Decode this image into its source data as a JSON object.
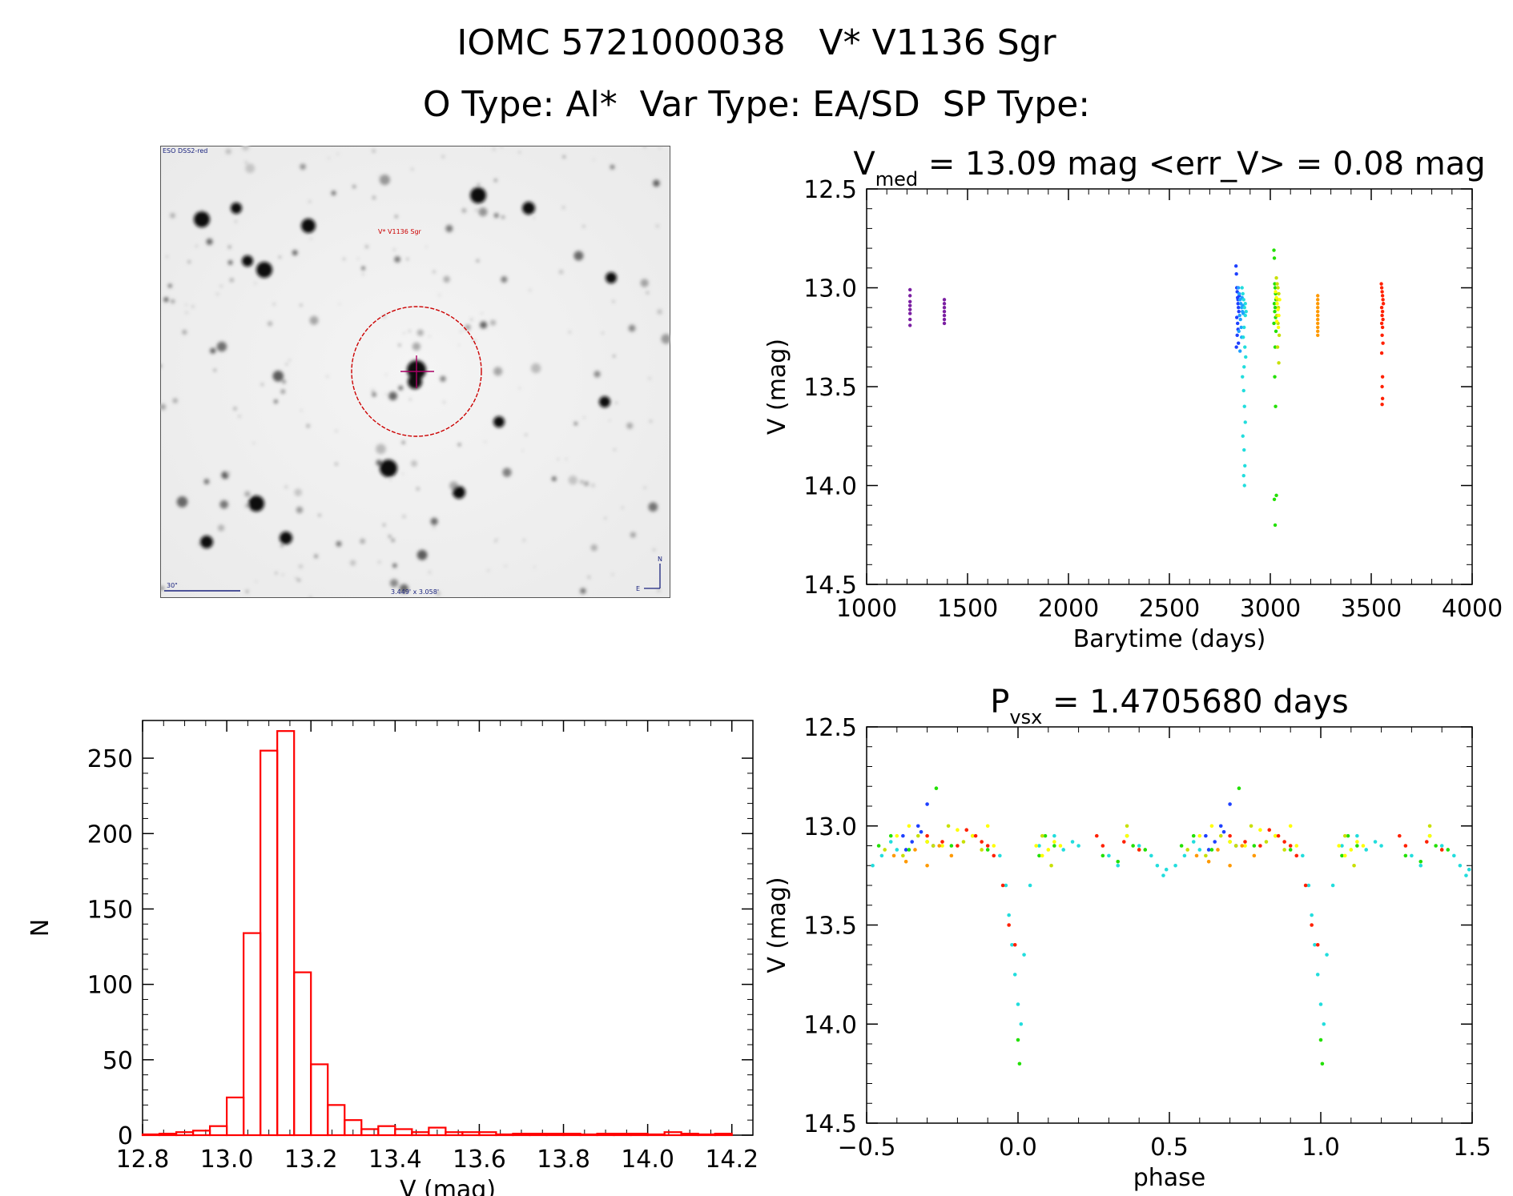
{
  "header": {
    "line1": "IOMC 5721000038   V* V1136 Sgr",
    "line2": "O Type: Al*  Var Type: EA/SD  SP Type:"
  },
  "finder": {
    "survey_label": "ESO DSS2-red",
    "target_label": "V* V1136 Sgr",
    "scale_label": "30\"",
    "fov_label": "3.449' x 3.058'",
    "north_label": "N",
    "east_label": "E"
  },
  "colors": {
    "hist": "#ff0000",
    "finder_circle": "#cc0000",
    "finder_text_blue": "#1a237e",
    "finder_text_red": "#cc0000",
    "season_palette": [
      "#7b1fa2",
      "#5e35b1",
      "#1e40ff",
      "#1fa0ff",
      "#22dddd",
      "#22e000",
      "#c8e000",
      "#ffff00",
      "#ff9900",
      "#ff2000"
    ]
  },
  "chart_data": [
    {
      "id": "lightcurve",
      "type": "scatter",
      "title": "V_med = 13.09 mag <err_V> = 0.08 mag",
      "title_main": "V",
      "title_sub": "med",
      "title_rest": " = 13.09 mag <err_V> = 0.08 mag",
      "xlabel": "Barytime (days)",
      "ylabel": "V (mag)",
      "xlim": [
        1000,
        4000
      ],
      "ylim": [
        14.5,
        12.5
      ],
      "xticks": [
        "1000",
        "1500",
        "2000",
        "2500",
        "3000",
        "3500",
        "4000"
      ],
      "yticks": [
        "12.5",
        "13.0",
        "13.5",
        "14.0",
        "14.5"
      ],
      "series": [
        {
          "color": "#7b1fa2",
          "x": [
            1215,
            1215,
            1215,
            1215,
            1215,
            1215,
            1215,
            1215,
            1385,
            1385,
            1385,
            1385,
            1385,
            1385,
            1385
          ],
          "y": [
            13.01,
            13.04,
            13.07,
            13.09,
            13.11,
            13.13,
            13.16,
            13.19,
            13.06,
            13.08,
            13.1,
            13.12,
            13.14,
            13.16,
            13.18
          ]
        },
        {
          "color": "#1e40ff",
          "x": [
            2830,
            2832,
            2834,
            2836,
            2838,
            2840,
            2842,
            2844,
            2834,
            2838,
            2840,
            2836,
            2842,
            2832,
            2846,
            2840
          ],
          "y": [
            12.89,
            12.93,
            13.0,
            13.02,
            13.05,
            13.08,
            13.1,
            13.12,
            13.15,
            13.18,
            13.21,
            13.24,
            13.28,
            13.3,
            13.04,
            13.06
          ]
        },
        {
          "color": "#1fa0ff",
          "x": [
            2842,
            2846,
            2850,
            2854,
            2858,
            2862,
            2848,
            2852,
            2856,
            2860,
            2864,
            2844,
            2858,
            2866,
            2850
          ],
          "y": [
            13.0,
            13.03,
            13.06,
            13.08,
            13.1,
            13.12,
            13.14,
            13.16,
            13.2,
            13.05,
            13.09,
            13.22,
            13.25,
            13.13,
            13.32
          ]
        },
        {
          "color": "#22dddd",
          "x": [
            2860,
            2864,
            2868,
            2872,
            2876,
            2870,
            2866,
            2874,
            2878,
            2862,
            2868,
            2872,
            2876,
            2864,
            2870,
            2874,
            2868,
            2872,
            2876,
            2880,
            2870
          ],
          "y": [
            13.0,
            13.03,
            13.06,
            13.1,
            13.14,
            13.2,
            13.25,
            13.3,
            13.35,
            13.45,
            13.52,
            13.6,
            13.68,
            13.75,
            13.82,
            13.9,
            13.95,
            14.0,
            13.08,
            13.12,
            13.4
          ]
        },
        {
          "color": "#22e000",
          "x": [
            3018,
            3020,
            3022,
            3024,
            3026,
            3028,
            3020,
            3024,
            3022,
            3026,
            3018,
            3028,
            3024,
            3022,
            3026,
            3030,
            3020,
            3024
          ],
          "y": [
            12.81,
            12.85,
            12.98,
            13.0,
            13.03,
            13.06,
            13.08,
            13.1,
            13.12,
            13.15,
            13.18,
            13.22,
            13.3,
            13.45,
            13.6,
            14.05,
            14.07,
            14.2
          ]
        },
        {
          "color": "#c8e000",
          "x": [
            3030,
            3034,
            3038,
            3042,
            3036,
            3040,
            3032,
            3038,
            3044,
            3036,
            3042
          ],
          "y": [
            12.95,
            12.98,
            13.0,
            13.03,
            13.06,
            13.1,
            13.14,
            13.18,
            13.24,
            13.3,
            13.38
          ]
        },
        {
          "color": "#ffff00",
          "x": [
            3026,
            3030,
            3034,
            3038,
            3042,
            3046,
            3032,
            3040
          ],
          "y": [
            13.02,
            13.05,
            13.08,
            13.11,
            13.14,
            13.06,
            13.17,
            13.2
          ]
        },
        {
          "color": "#ff9900",
          "x": [
            3235,
            3235,
            3235,
            3235,
            3235,
            3235,
            3235,
            3235,
            3235,
            3235,
            3235,
            3235
          ],
          "y": [
            13.04,
            13.06,
            13.08,
            13.1,
            13.12,
            13.14,
            13.16,
            13.18,
            13.2,
            13.22,
            13.14,
            13.24
          ]
        },
        {
          "color": "#ff2000",
          "x": [
            3550,
            3552,
            3554,
            3556,
            3558,
            3560,
            3552,
            3556,
            3554,
            3558,
            3552,
            3556,
            3554,
            3558,
            3552,
            3556,
            3554,
            3556,
            3554
          ],
          "y": [
            12.98,
            13.0,
            13.02,
            13.04,
            13.06,
            13.08,
            13.1,
            13.12,
            13.14,
            13.16,
            13.18,
            13.2,
            13.24,
            13.28,
            13.33,
            13.45,
            13.5,
            13.56,
            13.59
          ]
        }
      ]
    },
    {
      "id": "histogram",
      "type": "bar",
      "xlabel": "V (mag)",
      "ylabel": "N",
      "xlim": [
        12.8,
        14.25
      ],
      "ylim": [
        0,
        275
      ],
      "xticks": [
        "12.8",
        "13.0",
        "13.2",
        "13.4",
        "13.6",
        "13.8",
        "14.0",
        "14.2"
      ],
      "yticks": [
        "0",
        "50",
        "100",
        "150",
        "200",
        "250"
      ],
      "bin_width": 0.04,
      "bin_starts": [
        12.8,
        12.84,
        12.88,
        12.92,
        12.96,
        13.0,
        13.04,
        13.08,
        13.12,
        13.16,
        13.2,
        13.24,
        13.28,
        13.32,
        13.36,
        13.4,
        13.44,
        13.48,
        13.52,
        13.56,
        13.6,
        13.64,
        13.68,
        13.72,
        13.76,
        13.8,
        13.84,
        13.88,
        13.92,
        13.96,
        14.0,
        14.04,
        14.08,
        14.12,
        14.16
      ],
      "values": [
        0,
        1,
        2,
        3,
        6,
        25,
        134,
        255,
        268,
        108,
        47,
        20,
        10,
        4,
        6,
        4,
        2,
        5,
        2,
        2,
        2,
        0,
        1,
        1,
        1,
        1,
        0,
        1,
        1,
        1,
        0,
        2,
        1,
        0,
        1
      ]
    },
    {
      "id": "phased",
      "type": "scatter",
      "title": "P_vsx = 1.4705680 days",
      "title_main": "P",
      "title_sub": "vsx",
      "title_rest": " = 1.4705680 days",
      "xlabel": "phase",
      "ylabel": "V (mag)",
      "xlim": [
        -0.5,
        1.5
      ],
      "ylim": [
        14.5,
        12.5
      ],
      "xticks": [
        "−0.5",
        "0.0",
        "0.5",
        "1.0",
        "1.5"
      ],
      "yticks": [
        "12.5",
        "13.0",
        "13.5",
        "14.0",
        "14.5"
      ],
      "series": [
        {
          "color": "#1e40ff",
          "x": [
            -0.38,
            -0.35,
            -0.32,
            -0.3,
            -0.37,
            -0.33,
            -0.28
          ],
          "y": [
            13.05,
            13.08,
            13.03,
            12.89,
            13.12,
            13.0,
            13.1
          ]
        },
        {
          "color": "#22dddd",
          "x": [
            -0.48,
            -0.45,
            -0.42,
            -0.4,
            -0.06,
            -0.04,
            -0.03,
            -0.02,
            -0.01,
            0.0,
            0.01,
            0.02,
            0.04,
            0.07,
            0.12,
            0.15,
            0.18,
            0.2,
            0.3,
            0.33,
            0.4,
            0.44,
            0.46,
            0.48,
            0.49
          ],
          "y": [
            13.2,
            13.15,
            13.08,
            13.12,
            13.15,
            13.3,
            13.45,
            13.6,
            13.75,
            13.9,
            14.0,
            13.65,
            13.3,
            13.1,
            13.05,
            13.12,
            13.08,
            13.1,
            13.15,
            13.2,
            13.1,
            13.15,
            13.2,
            13.25,
            13.22
          ]
        },
        {
          "color": "#22e000",
          "x": [
            -0.46,
            -0.42,
            -0.36,
            -0.3,
            -0.27,
            -0.22,
            -0.15,
            -0.1,
            0.0,
            0.005,
            0.07,
            0.09,
            0.12,
            0.28,
            0.33,
            0.36,
            0.38,
            0.42
          ],
          "y": [
            13.1,
            13.05,
            13.12,
            13.08,
            12.81,
            13.1,
            13.05,
            13.12,
            14.08,
            14.2,
            13.15,
            13.05,
            13.1,
            13.15,
            13.18,
            13.05,
            13.1,
            13.12
          ]
        },
        {
          "color": "#ffff00",
          "x": [
            -0.4,
            -0.36,
            -0.3,
            -0.25,
            -0.2,
            -0.15,
            -0.1,
            -0.08,
            0.06,
            0.08,
            0.1,
            0.12,
            0.14,
            0.36,
            0.4
          ],
          "y": [
            13.05,
            13.0,
            13.08,
            13.1,
            13.02,
            13.05,
            13.0,
            13.1,
            13.1,
            13.15,
            13.12,
            13.08,
            13.1,
            13.05,
            13.12
          ]
        },
        {
          "color": "#c8e000",
          "x": [
            -0.44,
            -0.38,
            -0.33,
            -0.28,
            -0.23,
            -0.18,
            -0.12,
            0.08,
            0.11,
            0.36
          ],
          "y": [
            13.12,
            13.15,
            13.05,
            13.1,
            13.0,
            13.08,
            13.12,
            13.05,
            13.2,
            13.0
          ]
        },
        {
          "color": "#ff9900",
          "x": [
            -0.41,
            -0.37,
            -0.34,
            -0.3,
            -0.26,
            -0.22
          ],
          "y": [
            13.15,
            13.18,
            13.12,
            13.2,
            13.1,
            13.15
          ]
        },
        {
          "color": "#ff2000",
          "x": [
            -0.3,
            -0.25,
            -0.2,
            -0.17,
            -0.14,
            -0.12,
            -0.1,
            -0.08,
            -0.05,
            -0.03,
            -0.01,
            0.26,
            0.28,
            0.35,
            0.4
          ],
          "y": [
            13.05,
            13.08,
            13.1,
            13.02,
            13.05,
            13.08,
            13.1,
            13.15,
            13.3,
            13.5,
            13.6,
            13.05,
            13.1,
            13.08,
            13.12
          ]
        }
      ]
    }
  ]
}
